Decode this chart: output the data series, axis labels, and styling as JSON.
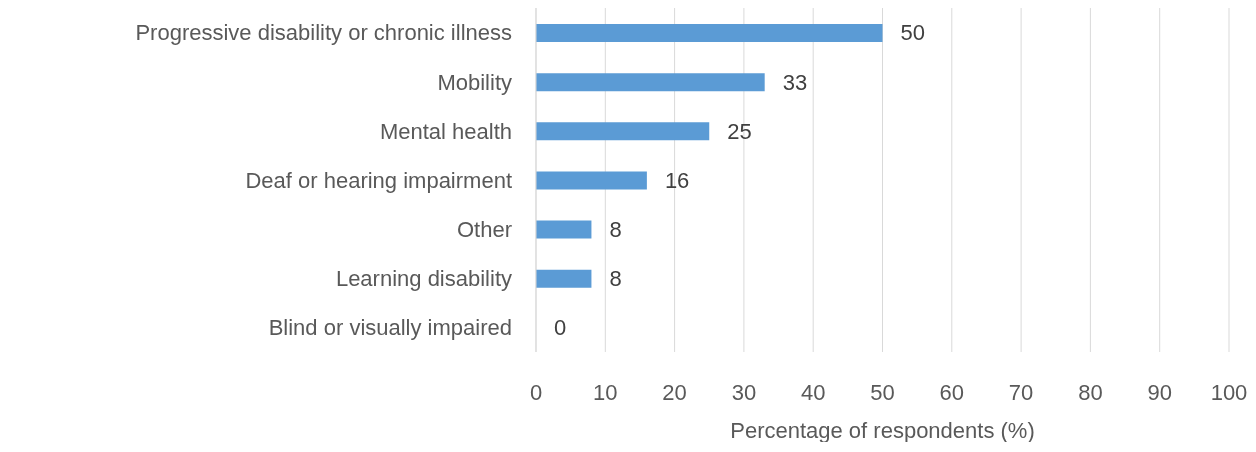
{
  "chart_data": {
    "type": "bar",
    "orientation": "horizontal",
    "xlabel": "Percentage of respondents (%)",
    "categories": [
      "Progressive disability or chronic illness",
      "Mobility",
      "Mental health",
      "Deaf or hearing impairment",
      "Other",
      "Learning disability",
      "Blind or visually impaired"
    ],
    "values": [
      50,
      33,
      25,
      16,
      8,
      8,
      0
    ],
    "color": "#5b9bd5",
    "xlim": [
      0,
      100
    ],
    "xticks": [
      0,
      10,
      20,
      30,
      40,
      50,
      60,
      70,
      80,
      90,
      100
    ],
    "grid": "x",
    "data_labels": true,
    "legend": false
  }
}
